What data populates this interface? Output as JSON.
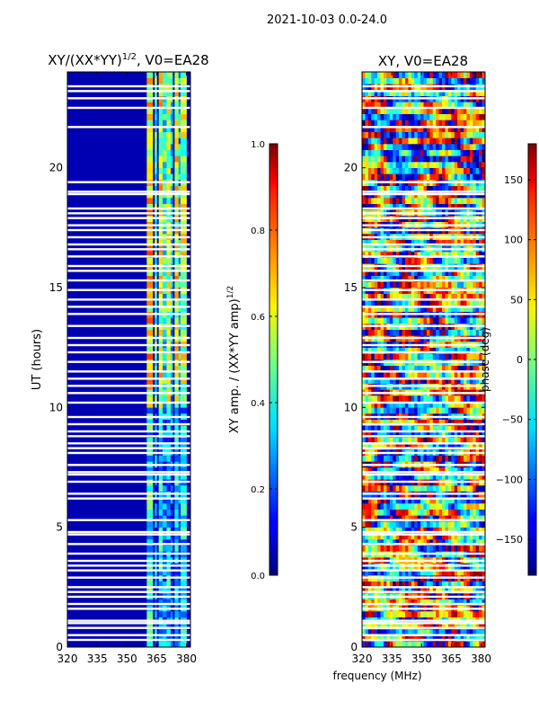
{
  "suptitle": "2021-10-03 0.0-24.0",
  "chart_data": [
    {
      "type": "heatmap",
      "title": "XY/(XX*YY)",
      "title_sup": "1/2",
      "title_tail": ", V0=EA28",
      "xlabel": "",
      "ylabel": "UT (hours)",
      "xlim": [
        320,
        382
      ],
      "ylim": [
        0,
        24
      ],
      "xticks": [
        320,
        335,
        350,
        365,
        380
      ],
      "yticks": [
        0,
        5,
        10,
        15,
        20
      ],
      "colorbar": {
        "label": "XY amp. / (XX*YY amp)",
        "label_sup": "1/2",
        "min": 0.0,
        "max": 1.0,
        "ticks": [
          "0.0",
          "0.2",
          "0.4",
          "0.6",
          "0.8",
          "1.0"
        ],
        "tick_values": [
          0.0,
          0.2,
          0.4,
          0.6,
          0.8,
          1.0
        ]
      },
      "bands": [
        {
          "x0": 360,
          "x1": 363,
          "level": 0.65
        },
        {
          "x0": 364,
          "x1": 365,
          "level": 0.45
        },
        {
          "x0": 366,
          "x1": 368,
          "level": 0.6
        },
        {
          "x0": 368,
          "x1": 370,
          "level": 0.4
        },
        {
          "x0": 370,
          "x1": 372,
          "level": 0.55
        },
        {
          "x0": 372,
          "x1": 373,
          "level": 0.35
        },
        {
          "x0": 374,
          "x1": 376,
          "level": 0.6
        },
        {
          "x0": 376,
          "x1": 377,
          "level": 0.3
        },
        {
          "x0": 377,
          "x1": 380,
          "level": 0.55
        }
      ]
    },
    {
      "type": "heatmap",
      "title": "XY, V0=EA28",
      "xlabel": "frequency (MHz)",
      "ylabel": "",
      "xlim": [
        320,
        382
      ],
      "ylim": [
        0,
        24
      ],
      "xticks": [
        320,
        335,
        350,
        365,
        380
      ],
      "yticks": [
        0,
        5,
        10,
        15,
        20
      ],
      "colorbar": {
        "label": "phase (deg)",
        "min": -180,
        "max": 180,
        "ticks": [
          "−150",
          "−100",
          "−50",
          "0",
          "50",
          "100",
          "150"
        ],
        "tick_values": [
          -150,
          -100,
          -50,
          0,
          50,
          100,
          150
        ]
      }
    }
  ],
  "flagged_rows_ut": [
    0.3,
    0.5,
    0.8,
    1.0,
    1.1,
    1.6,
    1.8,
    2.1,
    2.3,
    2.5,
    2.9,
    3.2,
    3.4,
    3.6,
    3.9,
    4.3,
    4.7,
    4.8,
    5.3,
    6.2,
    6.4,
    6.9,
    7.2,
    7.3,
    7.6,
    8.1,
    8.3,
    8.5,
    8.8,
    9.0,
    9.3,
    9.6,
    10.2,
    10.6,
    10.9,
    11.2,
    11.5,
    11.9,
    12.3,
    12.6,
    12.9,
    13.4,
    13.9,
    14.2,
    14.5,
    14.9,
    15.3,
    15.7,
    15.9,
    16.3,
    16.6,
    16.8,
    17.1,
    17.4,
    17.6,
    17.9,
    18.1,
    18.3,
    18.9,
    19.0,
    19.4,
    21.7,
    22.5,
    22.9,
    23.2,
    23.4
  ]
}
